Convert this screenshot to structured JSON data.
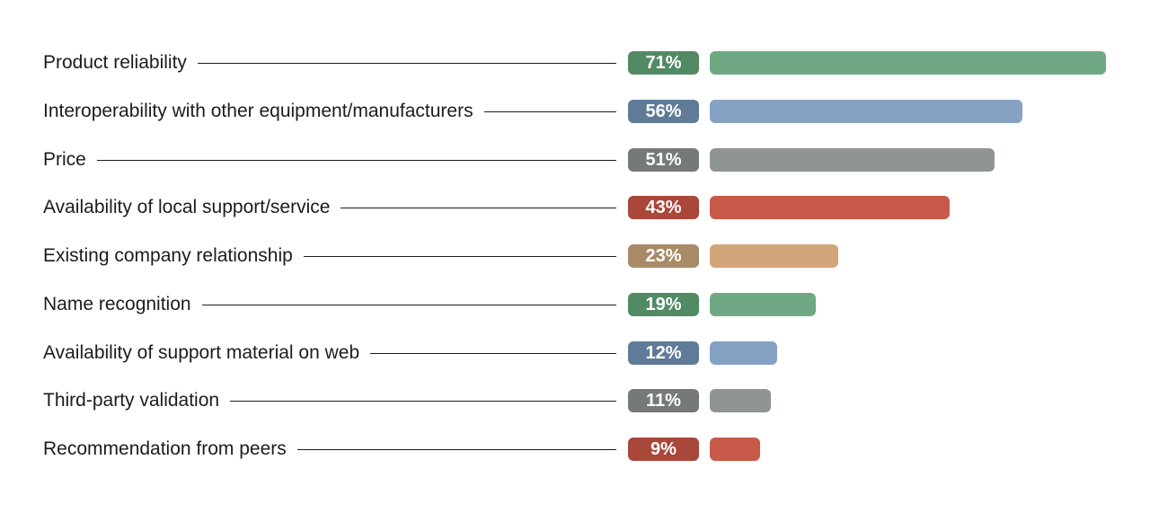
{
  "chart_data": {
    "type": "bar",
    "orientation": "horizontal",
    "categories": [
      "Product reliability",
      "Interoperability with other equipment/manufacturers",
      "Price",
      "Availability of local support/service",
      "Existing company relationship",
      "Name recognition",
      "Availability of support material on web",
      "Third-party validation",
      "Recommendation from peers"
    ],
    "values": [
      71,
      56,
      51,
      43,
      23,
      19,
      12,
      11,
      9
    ],
    "value_labels": [
      "71%",
      "56%",
      "51%",
      "43%",
      "23%",
      "19%",
      "12%",
      "11%",
      "9%"
    ],
    "unit": "%",
    "xlim": [
      0,
      71
    ],
    "grid": false,
    "legend": "none",
    "bar_colors": [
      "#6fa882",
      "#86a2c2",
      "#8f9590",
      "#c85a4a",
      "#d3a679",
      "#6fa882",
      "#86a2c2",
      "#8f9590",
      "#c85a4a"
    ],
    "badge_colors": [
      "#528a63",
      "#607b98",
      "#757a76",
      "#a9473a",
      "#a98a67",
      "#528a63",
      "#607b98",
      "#757a76",
      "#a9473a"
    ]
  }
}
